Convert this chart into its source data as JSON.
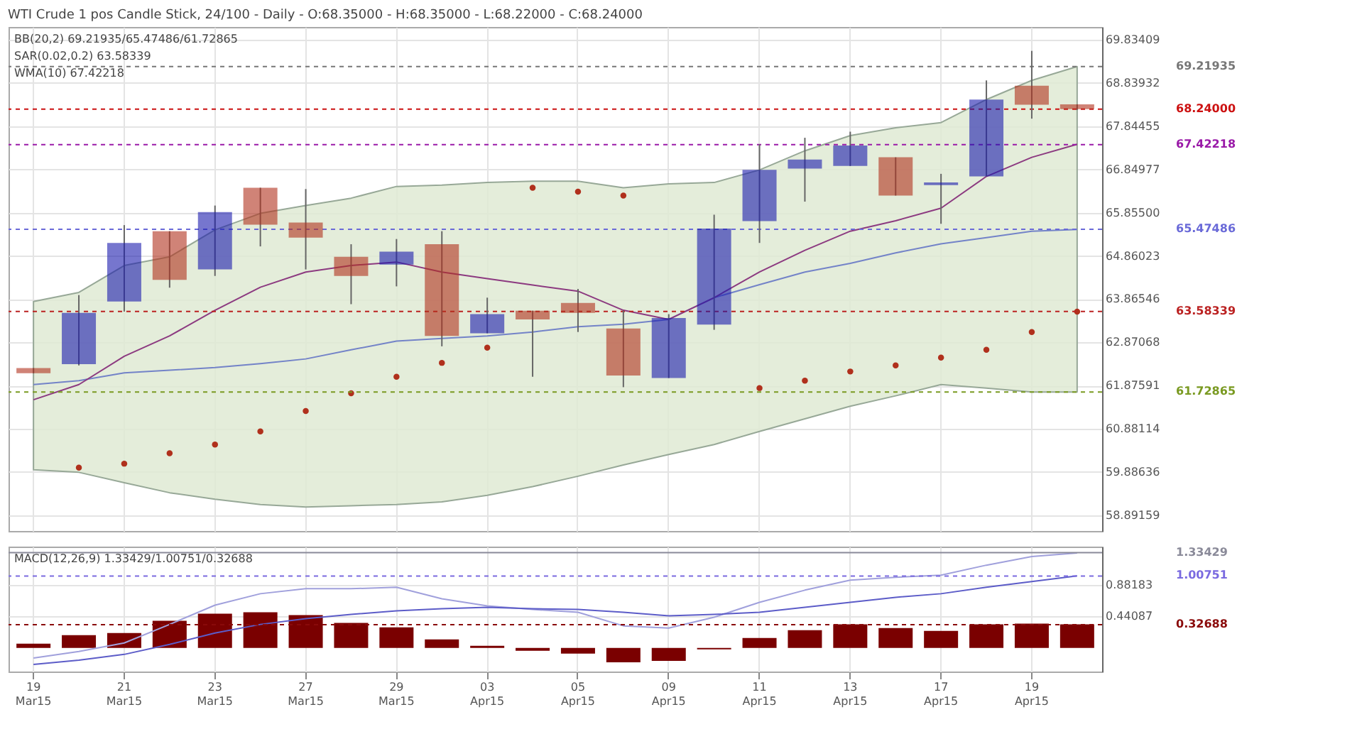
{
  "chart_data": [
    {
      "type": "candlestick",
      "title": "WTI Crude 1 pos Candle Stick, 24/100 - Daily - O:68.35000 - H:68.35000 - L:68.22000 - C:68.24000",
      "categories": [
        "19 Mar15",
        null,
        "21 Mar15",
        null,
        "23 Mar15",
        null,
        "27 Mar15",
        null,
        "29 Mar15",
        null,
        "03 Apr15",
        null,
        "05 Apr15",
        null,
        "09 Apr15",
        null,
        "11 Apr15",
        null,
        "13 Apr15",
        null,
        "17 Apr15",
        null,
        "19 Apr15",
        null
      ],
      "ohlc": [
        [
          62.28,
          62.28,
          62.16,
          62.16
        ],
        [
          62.37,
          63.96,
          62.34,
          63.55
        ],
        [
          63.81,
          65.57,
          63.58,
          65.16
        ],
        [
          65.43,
          65.43,
          64.13,
          64.31
        ],
        [
          64.55,
          66.02,
          64.4,
          65.87
        ],
        [
          66.43,
          66.43,
          65.08,
          65.58
        ],
        [
          65.63,
          66.4,
          64.55,
          65.28
        ],
        [
          64.84,
          65.13,
          63.75,
          64.4
        ],
        [
          64.66,
          65.25,
          64.16,
          64.96
        ],
        [
          65.13,
          65.43,
          62.78,
          63.02
        ],
        [
          63.08,
          63.9,
          63.08,
          63.52
        ],
        [
          63.6,
          63.6,
          62.08,
          63.4
        ],
        [
          63.78,
          64.1,
          63.11,
          63.55
        ],
        [
          63.19,
          63.6,
          61.84,
          62.11
        ],
        [
          62.05,
          63.52,
          62.05,
          63.43
        ],
        [
          63.28,
          65.81,
          63.16,
          65.49
        ],
        [
          65.66,
          67.43,
          65.16,
          66.84
        ],
        [
          66.87,
          67.58,
          66.11,
          67.08
        ],
        [
          66.93,
          67.72,
          66.93,
          67.4
        ],
        [
          67.13,
          67.13,
          66.25,
          66.25
        ],
        [
          66.49,
          66.75,
          65.6,
          66.55
        ],
        [
          66.69,
          68.9,
          66.69,
          68.46
        ],
        [
          68.78,
          69.58,
          68.02,
          68.34
        ],
        [
          68.35,
          68.35,
          68.22,
          68.24
        ]
      ],
      "colors": [
        "#b0301c",
        "#1a1aae",
        "#1a1aae",
        "#b0301c",
        "#1a1aae",
        "#b0301c",
        "#b0301c",
        "#b0301c",
        "#1a1aae",
        "#b0301c",
        "#1a1aae",
        "#b0301c",
        "#b0301c",
        "#b0301c",
        "#1a1aae",
        "#1a1aae",
        "#1a1aae",
        "#1a1aae",
        "#1a1aae",
        "#b0301c",
        "#1a1aae",
        "#1a1aae",
        "#b0301c",
        "#b0301c"
      ],
      "series": [
        {
          "type": "line",
          "color": "#7383c8",
          "values": [
            61.9,
            61.99,
            62.17,
            62.23,
            62.29,
            62.38,
            62.49,
            62.7,
            62.9,
            62.96,
            63.02,
            63.11,
            63.23,
            63.29,
            63.4,
            63.9,
            64.2,
            64.49,
            64.69,
            64.93,
            65.14,
            65.28,
            65.43,
            65.47
          ],
          "lower": [
            59.94,
            59.88,
            59.64,
            59.41,
            59.26,
            59.14,
            59.08,
            59.11,
            59.14,
            59.2,
            59.35,
            59.55,
            59.79,
            60.05,
            60.29,
            60.52,
            60.82,
            61.11,
            61.4,
            61.64,
            61.9,
            61.82,
            61.73,
            61.73
          ],
          "upper": [
            63.81,
            64.02,
            64.64,
            64.84,
            65.46,
            65.84,
            66.02,
            66.19,
            66.46,
            66.49,
            66.55,
            66.58,
            66.58,
            66.43,
            66.52,
            66.55,
            66.84,
            67.28,
            67.63,
            67.81,
            67.93,
            68.46,
            68.9,
            69.22
          ]
        },
        {
          "type": "line",
          "color": "#8c3a80",
          "values": [
            61.55,
            61.9,
            62.55,
            63.02,
            63.61,
            64.14,
            64.49,
            64.64,
            64.72,
            64.49,
            64.34,
            64.19,
            64.05,
            63.61,
            63.4,
            63.9,
            64.49,
            64.99,
            65.43,
            65.67,
            65.96,
            66.69,
            67.13,
            67.43
          ]
        },
        {
          "type": "scatter",
          "color": "#b0301c",
          "values": [
            null,
            59.99,
            60.08,
            60.32,
            60.52,
            60.82,
            61.29,
            61.7,
            62.08,
            62.4,
            62.75,
            66.43,
            66.34,
            66.25,
            null,
            null,
            61.82,
            61.99,
            62.2,
            62.34,
            62.52,
            62.7,
            63.11,
            63.58
          ]
        }
      ],
      "ylim": [
        58.53,
        70.13
      ],
      "yticks": [
        58.89159,
        59.88636,
        60.88114,
        61.87591,
        62.87068,
        63.86546,
        64.86023,
        {
          "value": 65.855,
          "label": "65.85500"
        },
        66.84977,
        67.84455,
        68.83932,
        69.83409
      ],
      "ref_lines": [
        {
          "axis": "y",
          "value": 69.21935,
          "label": "69.21935",
          "color": "#777777",
          "line_style": "dashed"
        },
        {
          "axis": "y",
          "value": 68.24,
          "label": "68.24000",
          "color": "#cc1111",
          "line_style": "dashed"
        },
        {
          "axis": "y",
          "value": 67.42218,
          "label": "67.42218",
          "color": "#9a1aa8",
          "line_style": "dashed"
        },
        {
          "axis": "y",
          "value": 65.47486,
          "label": "65.47486",
          "color": "#6a6ad8",
          "line_style": "dashed"
        },
        {
          "axis": "y",
          "value": 63.58339,
          "label": "63.58339",
          "color": "#bb2222",
          "line_style": "dashed"
        },
        {
          "axis": "y",
          "value": 61.72865,
          "label": "61.72865",
          "color": "#7a9a22",
          "line_style": "dashed"
        }
      ],
      "annotations": [
        "BB(20,2) 69.21935/65.47486/61.72865",
        "SAR(0.02,0.2) 63.58339",
        "WMA(10) 67.42218"
      ],
      "grid": true,
      "tick_labels": "y"
    },
    {
      "type": "bar",
      "categories": [
        "19 Mar15",
        null,
        "21 Mar15",
        null,
        "23 Mar15",
        null,
        "27 Mar15",
        null,
        "29 Mar15",
        null,
        "03 Apr15",
        null,
        "05 Apr15",
        null,
        "09 Apr15",
        null,
        "11 Apr15",
        null,
        "13 Apr15",
        null,
        "17 Apr15",
        null,
        "19 Apr15",
        null
      ],
      "series": [
        {
          "type": "bar",
          "color": "#7a0000",
          "values": [
            0.06,
            0.18,
            0.21,
            0.38,
            0.48,
            0.5,
            0.46,
            0.35,
            0.29,
            0.12,
            0.03,
            -0.04,
            -0.08,
            -0.2,
            -0.18,
            -0.02,
            0.14,
            0.25,
            0.33,
            0.28,
            0.24,
            0.33,
            0.34,
            0.33
          ]
        },
        {
          "type": "line",
          "color": "#a0a0dc",
          "values": [
            -0.14,
            -0.05,
            0.07,
            0.33,
            0.6,
            0.76,
            0.83,
            0.83,
            0.85,
            0.69,
            0.59,
            0.54,
            0.5,
            0.31,
            0.28,
            0.43,
            0.64,
            0.81,
            0.95,
            0.99,
            1.02,
            1.16,
            1.28,
            1.33
          ]
        },
        {
          "type": "line",
          "color": "#5c5cc8",
          "values": [
            -0.23,
            -0.17,
            -0.09,
            0.05,
            0.21,
            0.33,
            0.41,
            0.47,
            0.52,
            0.55,
            0.57,
            0.55,
            0.54,
            0.5,
            0.45,
            0.47,
            0.5,
            0.57,
            0.64,
            0.71,
            0.76,
            0.85,
            0.93,
            1.01
          ]
        }
      ],
      "ylim": [
        -0.33,
        1.42
      ],
      "yticks": [
        0.44087,
        0.88183
      ],
      "ref_lines": [
        {
          "axis": "y",
          "value": 1.33429,
          "label": "1.33429",
          "color": "#8a8a99",
          "line_style": "solid"
        },
        {
          "axis": "y",
          "value": 1.00751,
          "label": "1.00751",
          "color": "#7a6ae0",
          "line_style": "dashed"
        },
        {
          "axis": "y",
          "value": 0.32688,
          "label": "0.32688",
          "color": "#8a0a0a",
          "line_style": "dashed"
        }
      ],
      "annotations": [
        "MACD(12,26,9) 1.33429/1.00751/0.32688"
      ],
      "grid": true
    }
  ]
}
